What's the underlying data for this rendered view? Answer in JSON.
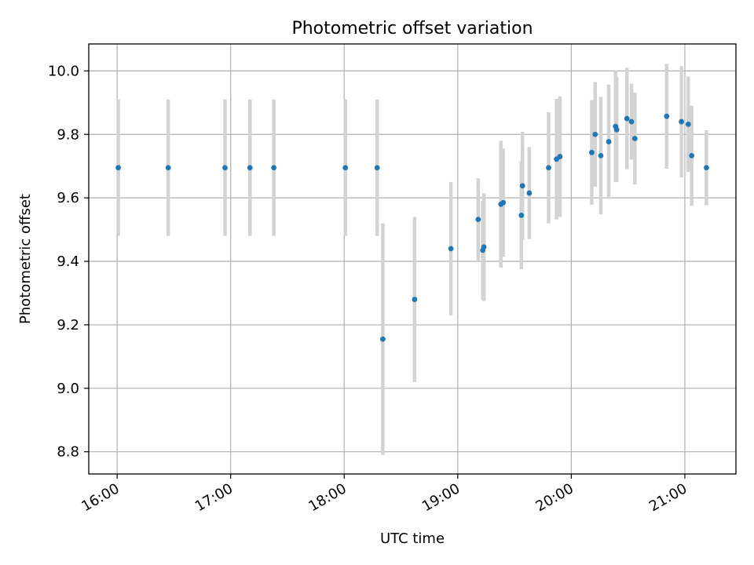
{
  "chart_data": {
    "type": "scatter",
    "title": "Photometric offset variation",
    "xlabel": "UTC time",
    "ylabel": "Photometric offset",
    "x_unit": "hours UTC",
    "xlim": [
      15.75,
      21.45
    ],
    "ylim": [
      8.73,
      10.085
    ],
    "x_ticks": [
      {
        "value": 16,
        "label": "16:00"
      },
      {
        "value": 17,
        "label": "17:00"
      },
      {
        "value": 18,
        "label": "18:00"
      },
      {
        "value": 19,
        "label": "19:00"
      },
      {
        "value": 20,
        "label": "20:00"
      },
      {
        "value": 21,
        "label": "21:00"
      }
    ],
    "y_ticks": [
      {
        "value": 8.8,
        "label": "8.8"
      },
      {
        "value": 9.0,
        "label": "9.0"
      },
      {
        "value": 9.2,
        "label": "9.2"
      },
      {
        "value": 9.4,
        "label": "9.4"
      },
      {
        "value": 9.6,
        "label": "9.6"
      },
      {
        "value": 9.8,
        "label": "9.8"
      },
      {
        "value": 10.0,
        "label": "10.0"
      }
    ],
    "grid": true,
    "colors": {
      "point": "#1f77b4",
      "errorbar": "#d3d3d3",
      "grid": "#b0b0b0",
      "axis": "#000000"
    },
    "series": [
      {
        "name": "offset",
        "points": [
          {
            "x": 16.01,
            "y": 9.695,
            "err": 0.215
          },
          {
            "x": 16.45,
            "y": 9.695,
            "err": 0.215
          },
          {
            "x": 16.95,
            "y": 9.695,
            "err": 0.215
          },
          {
            "x": 17.17,
            "y": 9.695,
            "err": 0.215
          },
          {
            "x": 17.38,
            "y": 9.695,
            "err": 0.215
          },
          {
            "x": 18.01,
            "y": 9.695,
            "err": 0.215
          },
          {
            "x": 18.29,
            "y": 9.695,
            "err": 0.215
          },
          {
            "x": 18.34,
            "y": 9.155,
            "err": 0.365
          },
          {
            "x": 18.62,
            "y": 9.28,
            "err": 0.26
          },
          {
            "x": 18.94,
            "y": 9.44,
            "err": 0.21
          },
          {
            "x": 19.18,
            "y": 9.532,
            "err": 0.13
          },
          {
            "x": 19.22,
            "y": 9.435,
            "err": 0.155
          },
          {
            "x": 19.23,
            "y": 9.445,
            "err": 0.17
          },
          {
            "x": 19.38,
            "y": 9.58,
            "err": 0.2
          },
          {
            "x": 19.4,
            "y": 9.585,
            "err": 0.17
          },
          {
            "x": 19.56,
            "y": 9.545,
            "err": 0.17
          },
          {
            "x": 19.57,
            "y": 9.638,
            "err": 0.17
          },
          {
            "x": 19.63,
            "y": 9.615,
            "err": 0.145
          },
          {
            "x": 19.8,
            "y": 9.695,
            "err": 0.175
          },
          {
            "x": 19.87,
            "y": 9.722,
            "err": 0.19
          },
          {
            "x": 19.9,
            "y": 9.73,
            "err": 0.19
          },
          {
            "x": 20.18,
            "y": 9.743,
            "err": 0.165
          },
          {
            "x": 20.21,
            "y": 9.8,
            "err": 0.165
          },
          {
            "x": 20.26,
            "y": 9.733,
            "err": 0.185
          },
          {
            "x": 20.33,
            "y": 9.777,
            "err": 0.18
          },
          {
            "x": 20.39,
            "y": 9.825,
            "err": 0.175
          },
          {
            "x": 20.4,
            "y": 9.815,
            "err": 0.165
          },
          {
            "x": 20.49,
            "y": 9.85,
            "err": 0.16
          },
          {
            "x": 20.53,
            "y": 9.84,
            "err": 0.12
          },
          {
            "x": 20.56,
            "y": 9.787,
            "err": 0.145
          },
          {
            "x": 20.84,
            "y": 9.857,
            "err": 0.165
          },
          {
            "x": 20.97,
            "y": 9.84,
            "err": 0.175
          },
          {
            "x": 21.03,
            "y": 9.832,
            "err": 0.15
          },
          {
            "x": 21.06,
            "y": 9.733,
            "err": 0.158
          },
          {
            "x": 21.19,
            "y": 9.695,
            "err": 0.118
          }
        ]
      }
    ]
  }
}
